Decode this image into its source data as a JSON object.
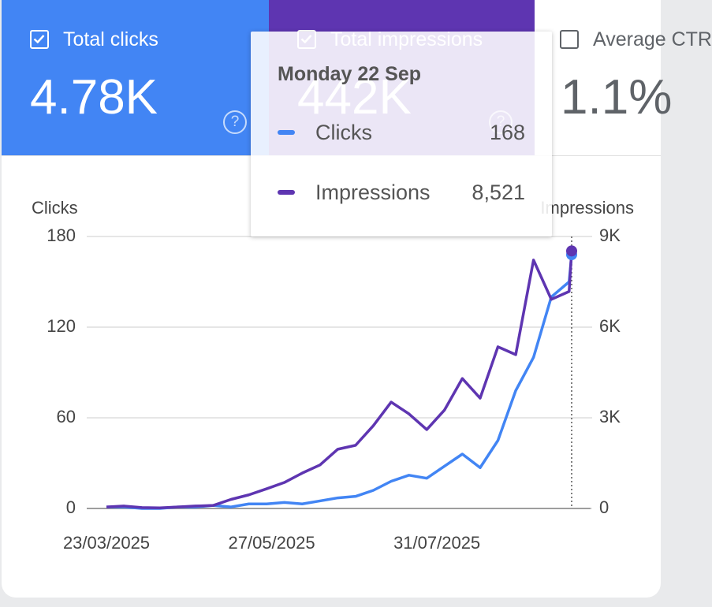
{
  "metrics": [
    {
      "label": "Total clicks",
      "value": "4.78K",
      "checked": true,
      "color": "#4285f4"
    },
    {
      "label": "Total impressions",
      "value": "442K",
      "checked": true,
      "color": "#5e35b1"
    },
    {
      "label": "Average CTR",
      "value": "1.1%",
      "checked": false,
      "color": "#00897b"
    }
  ],
  "chart_data": {
    "type": "line",
    "y_label": "Clicks",
    "y2_label": "Impressions",
    "x": [
      "23/03/2025",
      "30/03/2025",
      "06/04/2025",
      "13/04/2025",
      "20/04/2025",
      "27/04/2025",
      "04/05/2025",
      "11/05/2025",
      "18/05/2025",
      "25/05/2025",
      "01/06/2025",
      "08/06/2025",
      "15/06/2025",
      "22/06/2025",
      "29/06/2025",
      "06/07/2025",
      "13/07/2025",
      "20/07/2025",
      "27/07/2025",
      "03/08/2025",
      "10/08/2025",
      "17/08/2025",
      "24/08/2025",
      "31/08/2025",
      "07/09/2025",
      "14/09/2025",
      "21/09/2025",
      "22/09/2025"
    ],
    "xlim": [
      "23/03/2025",
      "22/09/2025"
    ],
    "xticks": [
      "23/03/2025",
      "27/05/2025",
      "31/07/2025"
    ],
    "series": [
      {
        "name": "Clicks",
        "color": "#4285f4",
        "values": [
          1,
          1,
          0,
          0,
          1,
          1,
          2,
          1,
          3,
          3,
          4,
          3,
          5,
          7,
          8,
          12,
          18,
          22,
          20,
          28,
          36,
          27,
          45,
          78,
          100,
          140,
          150,
          168
        ]
      },
      {
        "name": "Impressions",
        "color": "#5e35b1",
        "axis": "y2",
        "values": [
          50,
          80,
          30,
          20,
          50,
          80,
          100,
          300,
          450,
          650,
          860,
          1170,
          1440,
          1960,
          2090,
          2740,
          3520,
          3130,
          2610,
          3260,
          4300,
          3650,
          5350,
          5090,
          8220,
          6920,
          7180,
          8521
        ]
      }
    ],
    "ylim": [
      0,
      180
    ],
    "yticks": [
      0,
      60,
      120,
      180
    ],
    "y2lim": [
      0,
      9000
    ],
    "y2ticks": [
      0,
      {
        "value": 3000,
        "label": "3K"
      },
      {
        "value": 6000,
        "label": "6K"
      },
      {
        "value": 9000,
        "label": "9K"
      }
    ],
    "grid": true,
    "tooltip": {
      "title": "Monday 22 Sep",
      "values": [
        168,
        8521
      ],
      "value_labels": [
        "168",
        "8,521"
      ]
    }
  }
}
